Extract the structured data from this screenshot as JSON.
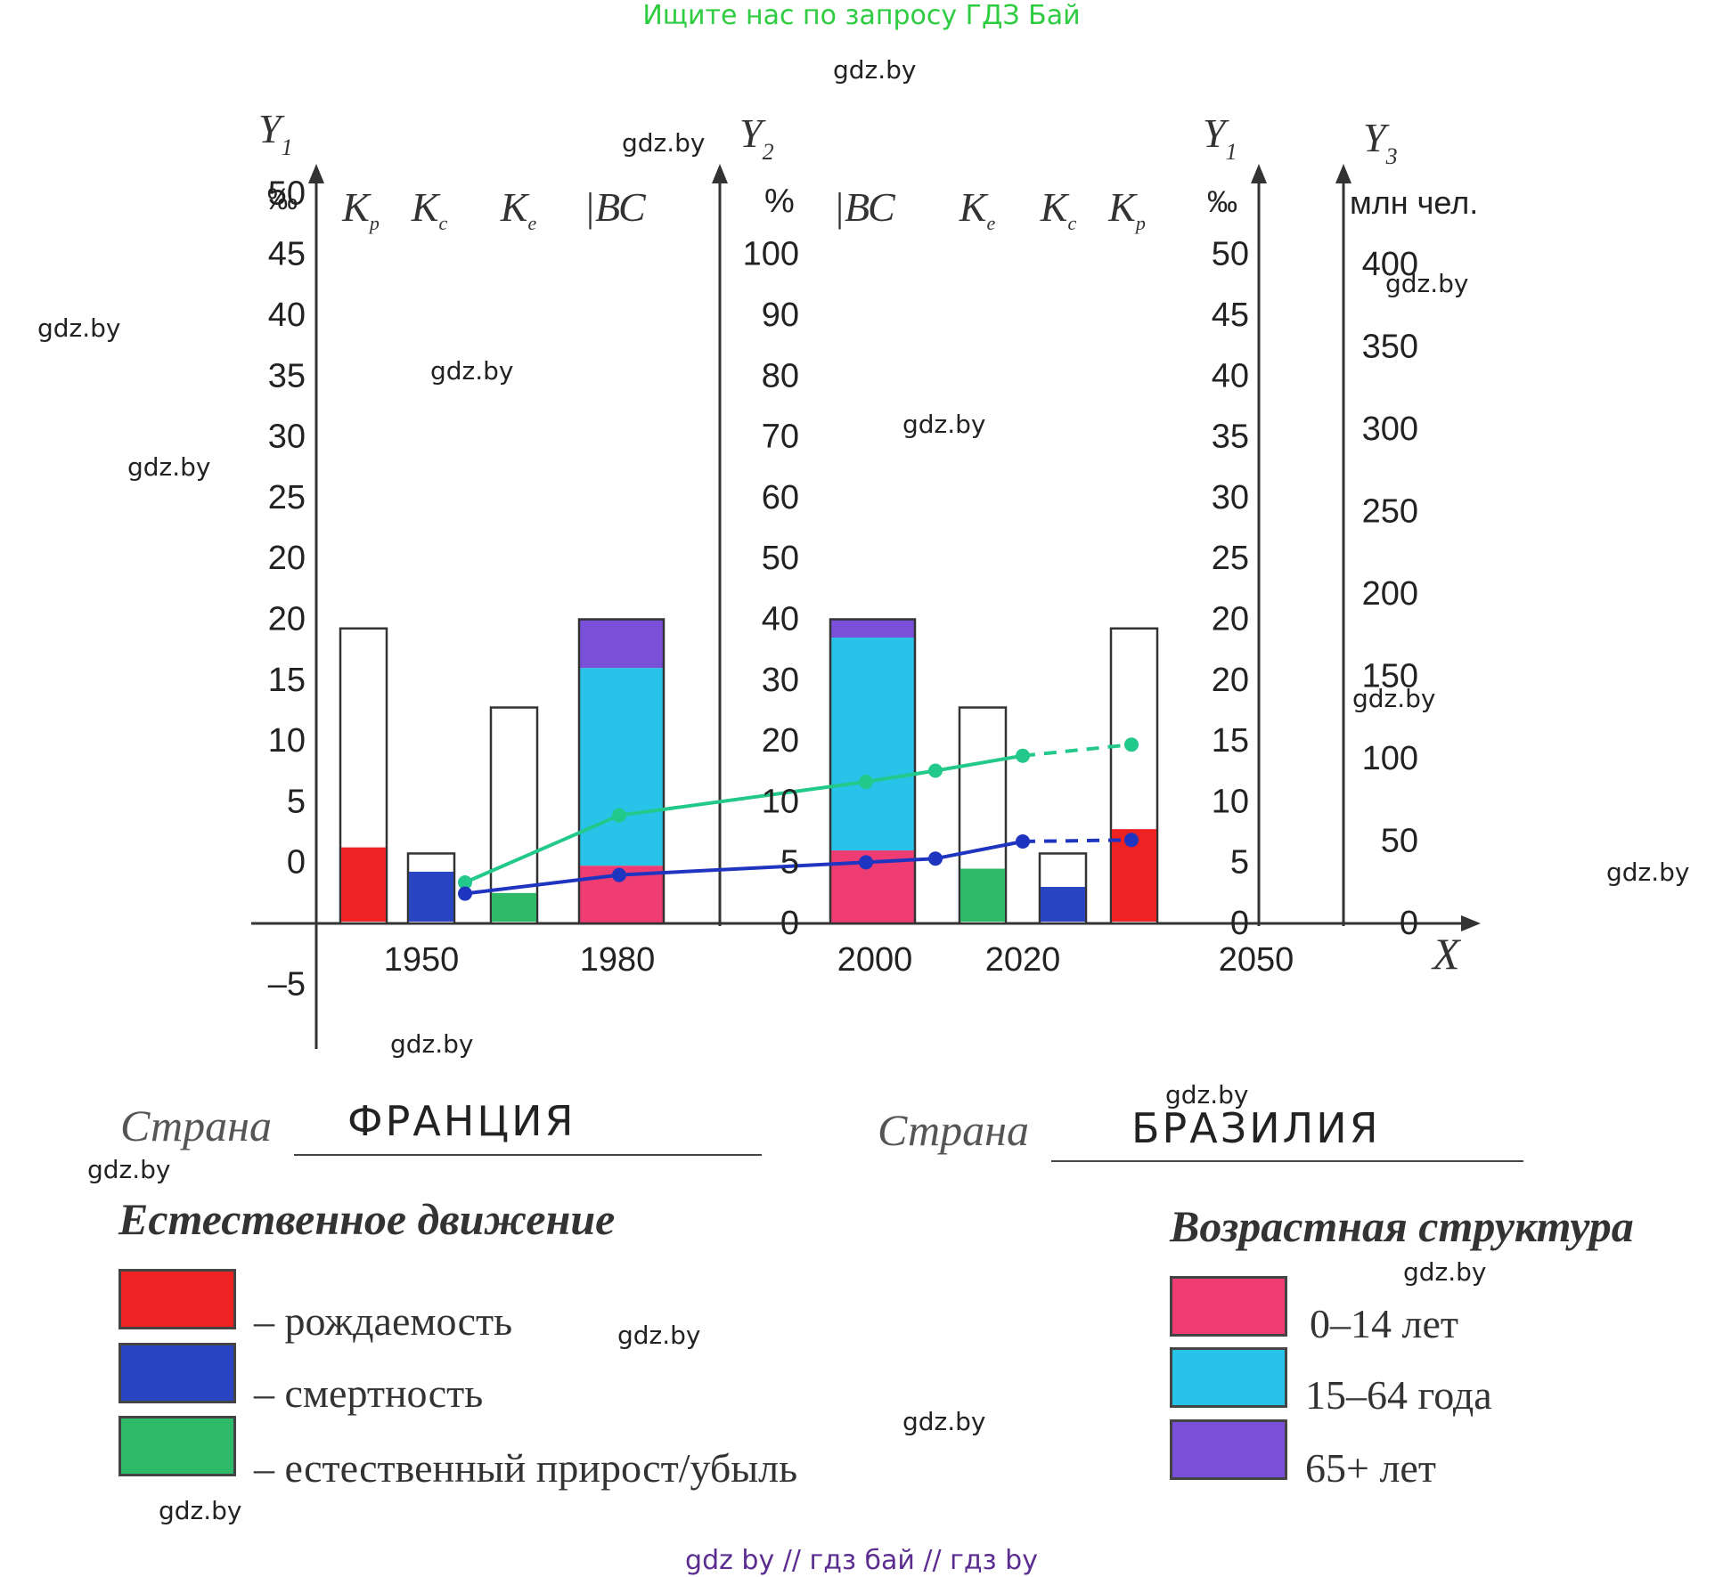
{
  "header": {
    "top_banner": "Ищите нас по запросу ГДЗ Бай",
    "bottom_banner": "gdz by  //  гдз бай  //  гдз by"
  },
  "watermarks": [
    "gdz.by",
    "gdz.by",
    "gdz.by",
    "gdz.by",
    "gdz.by",
    "gdz.by",
    "gdz.by",
    "gdz.by",
    "gdz.by",
    "gdz.by",
    "gdz.by",
    "gdz.by",
    "gdz.by",
    "gdz.by",
    "gdz.by",
    "gdz.by"
  ],
  "countries": {
    "label_left": "Страна",
    "value_left": "ФРАНЦИЯ",
    "label_right": "Страна",
    "value_right": "БРАЗИЛИЯ"
  },
  "legend": {
    "natural_title": "Естественное движение",
    "natural_items": [
      {
        "label": "– рождаемость",
        "color": "#ee2222"
      },
      {
        "label": "– смертность",
        "color": "#2a45c4"
      },
      {
        "label": "– естественный прирост/убыль",
        "color": "#2fba6a"
      }
    ],
    "age_title": "Возрастная структура",
    "age_items": [
      {
        "label": "0–14 лет",
        "color": "#ef3d74"
      },
      {
        "label": "15–64 года",
        "color": "#27c3e8"
      },
      {
        "label": "65+ лет",
        "color": "#7a50d8"
      }
    ]
  },
  "chart_data": {
    "type": "bar",
    "axes": {
      "y1_left": {
        "label": "Y1",
        "unit": "‰",
        "ticks": [
          "50",
          "45",
          "40",
          "35",
          "30",
          "25",
          "20",
          "20",
          "15",
          "10",
          "5",
          "0",
          "–5"
        ]
      },
      "y2": {
        "label": "Y2",
        "unit": "%",
        "ticks": [
          "100",
          "90",
          "80",
          "70",
          "60",
          "50",
          "40",
          "30",
          "20",
          "10",
          "5",
          "0"
        ]
      },
      "y1_right": {
        "label": "Y1",
        "unit": "‰",
        "ticks": [
          "50",
          "45",
          "40",
          "35",
          "30",
          "25",
          "20",
          "20",
          "15",
          "10",
          "5",
          "0"
        ]
      },
      "y3": {
        "label": "Y3",
        "unit": "млн чел.",
        "ticks": [
          "400",
          "350",
          "300",
          "250",
          "200",
          "150",
          "100",
          "50",
          "0"
        ]
      },
      "x": {
        "label": "X",
        "ticks": [
          "1950",
          "1980",
          "2000",
          "2020",
          "2050"
        ]
      }
    },
    "bar_labels": [
      "Kр",
      "Kс",
      "Kе",
      "ВС",
      "ВС",
      "Kе",
      "Kс",
      "Kр"
    ],
    "rate_bars_left": [
      {
        "label": "Kр",
        "total": 48.5,
        "filled": 12.5,
        "fill_color": "#ee2222"
      },
      {
        "label": "Kс",
        "total": 11.5,
        "filled": 8.5,
        "fill_color": "#2a45c4"
      },
      {
        "label": "Kе",
        "total": 35.5,
        "filled": 5,
        "fill_color": "#2fba6a"
      }
    ],
    "rate_bars_right": [
      {
        "label": "Kе",
        "total": 35.5,
        "filled": 9,
        "fill_color": "#2fba6a"
      },
      {
        "label": "Kс",
        "total": 11.5,
        "filled": 6,
        "fill_color": "#2a45c4"
      },
      {
        "label": "Kр",
        "total": 48.5,
        "filled": 15.5,
        "fill_color": "#ee2222"
      }
    ],
    "age_structure_bars": [
      {
        "label": "ВС",
        "country": "ФРАНЦИЯ",
        "age_0_14": 19,
        "age_15_64": 65,
        "age_65_plus": 16
      },
      {
        "label": "ВС",
        "country": "БРАЗИЛИЯ",
        "age_0_14": 24,
        "age_15_64": 70,
        "age_65_plus": 6
      }
    ],
    "population_series": [
      {
        "color": "#23c98a",
        "x": [
          1960,
          1980,
          2000,
          2010,
          2020,
          2030
        ],
        "y": [
          55,
          145,
          190,
          205,
          225,
          240
        ],
        "projected_from": 2020
      },
      {
        "color": "#1f35c0",
        "x": [
          1960,
          1980,
          2000,
          2010,
          2020,
          2030
        ],
        "y": [
          40,
          65,
          82,
          87,
          110,
          112
        ],
        "projected_from": 2020
      }
    ],
    "grid": false
  }
}
